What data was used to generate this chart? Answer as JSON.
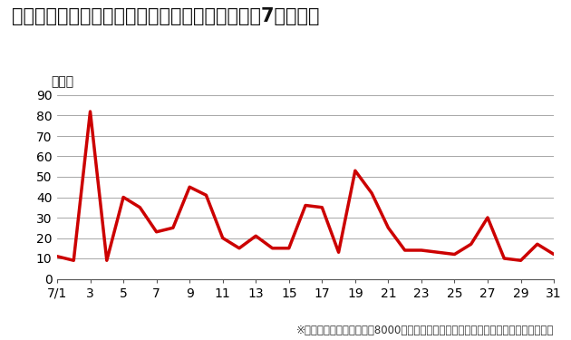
{
  "title": "『エコめがね』による発電ゼロアラート発報数（7月単月）",
  "ylabel_label": "（回）",
  "footnote": "※対象は全量買取設備（絉8000箇所）、同一センサによる複数回アラート発報も含む",
  "x_values": [
    1,
    2,
    3,
    4,
    5,
    6,
    7,
    8,
    9,
    10,
    11,
    12,
    13,
    14,
    15,
    16,
    17,
    18,
    19,
    20,
    21,
    22,
    23,
    24,
    25,
    26,
    27,
    28,
    29,
    30,
    31
  ],
  "y_values": [
    11,
    9,
    82,
    9,
    40,
    35,
    23,
    25,
    45,
    41,
    20,
    15,
    21,
    15,
    15,
    36,
    35,
    13,
    53,
    42,
    25,
    14,
    14,
    13,
    12,
    17,
    30,
    10,
    9,
    17,
    12
  ],
  "line_color": "#cc0000",
  "line_width": 2.5,
  "ylim": [
    0,
    90
  ],
  "yticks": [
    0,
    10,
    20,
    30,
    40,
    50,
    60,
    70,
    80,
    90
  ],
  "xticks": [
    1,
    3,
    5,
    7,
    9,
    11,
    13,
    15,
    17,
    19,
    21,
    23,
    25,
    27,
    29,
    31
  ],
  "background_color": "#ffffff",
  "grid_color": "#999999",
  "title_fontsize": 15,
  "axis_fontsize": 10,
  "footnote_fontsize": 8.5,
  "ylabel_fontsize": 10
}
